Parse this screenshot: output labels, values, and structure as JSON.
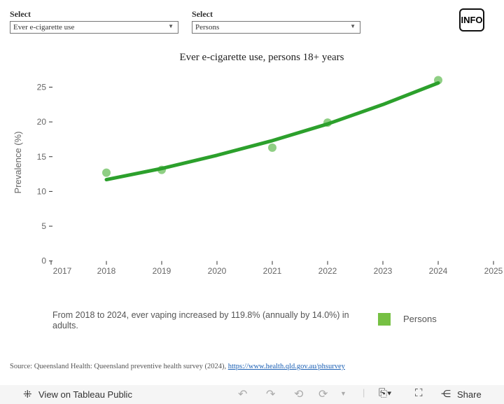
{
  "filters": [
    {
      "label": "Select",
      "value": "Ever e-cigarette use"
    },
    {
      "label": "Select",
      "value": "Persons"
    }
  ],
  "info_label": "INFO",
  "chart_data": {
    "type": "scatter",
    "title": "Ever e-cigarette use, persons 18+ years",
    "ylabel": "Prevalence (%)",
    "xlabel": "",
    "xlim": [
      2017,
      2025
    ],
    "ylim": [
      0,
      27
    ],
    "xticks": [
      "2017",
      "2018",
      "2019",
      "2020",
      "2021",
      "2022",
      "2023",
      "2024",
      "2025"
    ],
    "yticks": [
      "0",
      "5",
      "10",
      "15",
      "20",
      "25"
    ],
    "grid": false,
    "series": [
      {
        "name": "Persons",
        "kind": "points",
        "color": "#8fcf84",
        "x": [
          2018,
          2019,
          2021,
          2022,
          2024
        ],
        "y": [
          12.7,
          13.1,
          16.3,
          19.9,
          26.0
        ]
      },
      {
        "kind": "trend",
        "color": "#2ca02c",
        "x": [
          2018,
          2019,
          2020,
          2021,
          2022,
          2023,
          2024
        ],
        "y": [
          11.7,
          13.3,
          15.2,
          17.3,
          19.7,
          22.5,
          25.6
        ]
      }
    ],
    "legend": {
      "label": "Persons",
      "color": "#76c043",
      "placement": "bottom-right"
    }
  },
  "note": "From 2018 to 2024, ever vaping increased by 119.8% (annually by 14.0%) in adults.",
  "source": {
    "text": "Source: Queensland Health: Queensland preventive health survey (2024), ",
    "link": "https://www.health.qld.gov.au/phsurvey"
  },
  "toolbar": {
    "view_label": "View on Tableau Public",
    "share_label": "Share"
  }
}
